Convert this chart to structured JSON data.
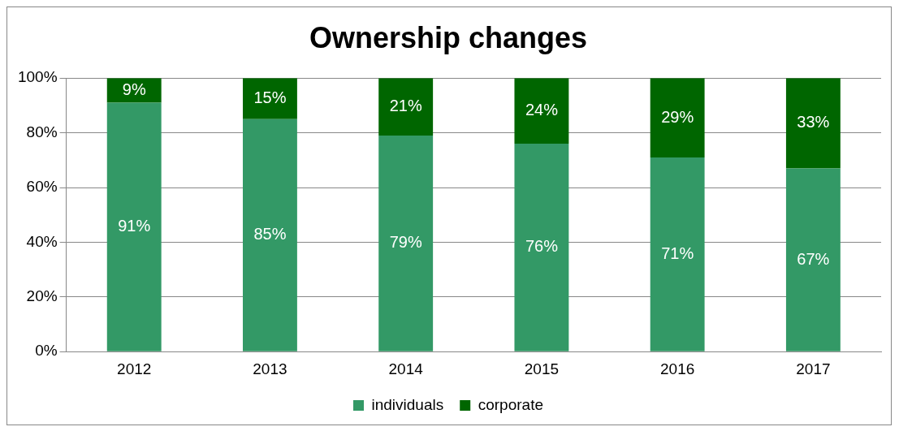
{
  "chart_data": {
    "type": "bar",
    "title": "Ownership changes",
    "categories": [
      "2012",
      "2013",
      "2014",
      "2015",
      "2016",
      "2017"
    ],
    "stacked": true,
    "series": [
      {
        "name": "individuals",
        "color": "#339966",
        "values": [
          91,
          85,
          79,
          76,
          71,
          67
        ],
        "value_labels": [
          "91%",
          "85%",
          "79%",
          "76%",
          "71%",
          "67%"
        ]
      },
      {
        "name": "corporate",
        "color": "#006600",
        "values": [
          9,
          15,
          21,
          24,
          29,
          33
        ],
        "value_labels": [
          "9%",
          "15%",
          "21%",
          "24%",
          "29%",
          "33%"
        ]
      }
    ],
    "ylim": [
      0,
      100
    ],
    "yticks": [
      {
        "value": 0,
        "label": "0%"
      },
      {
        "value": 20,
        "label": "20%"
      },
      {
        "value": 40,
        "label": "40%"
      },
      {
        "value": 60,
        "label": "60%"
      },
      {
        "value": 80,
        "label": "80%"
      },
      {
        "value": 100,
        "label": "100%"
      }
    ],
    "grid": "y",
    "legend": "bottom"
  }
}
